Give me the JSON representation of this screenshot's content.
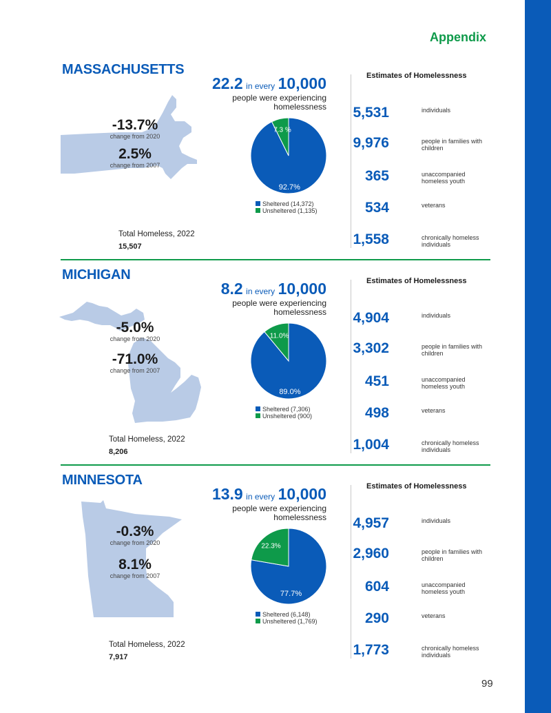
{
  "header": {
    "section": "Appendix",
    "page_number": "99"
  },
  "colors": {
    "accent": "#0a5bb8",
    "green": "#0e9a4a",
    "map": "#b9cbe6"
  },
  "common": {
    "in_every": "in every",
    "per": "10,000",
    "people_text": "people were experiencing homelessness",
    "estimates_title": "Estimates of Homelessness",
    "total_label": "Total Homeless, 2022",
    "change_2020_label": "change from 2020",
    "change_2007_label": "change from 2007",
    "sheltered_word": "Sheltered",
    "unsheltered_word": "Unsheltered",
    "est_labels": [
      "individuals",
      "people in families with children",
      "unaccompanied homeless youth",
      "veterans",
      "chronically homeless individuals"
    ]
  },
  "states": [
    {
      "name": "MASSACHUSETTS",
      "rate": "22.2",
      "change_2020": "-13.7%",
      "change_2007": "2.5%",
      "total": "15,507",
      "sheltered_count": "14,372",
      "unsheltered_count": "1,135",
      "sheltered_pct": 92.7,
      "unsheltered_pct": 7.3,
      "sheltered_label": "92.7%",
      "unsheltered_label": "7.3 %",
      "estimates": [
        "5,531",
        "9,976",
        "365",
        "534",
        "1,558"
      ]
    },
    {
      "name": "MICHIGAN",
      "rate": "8.2",
      "change_2020": "-5.0%",
      "change_2007": "-71.0%",
      "total": "8,206",
      "sheltered_count": "7,306",
      "unsheltered_count": "900",
      "sheltered_pct": 89.0,
      "unsheltered_pct": 11.0,
      "sheltered_label": "89.0%",
      "unsheltered_label": "11.0%",
      "estimates": [
        "4,904",
        "3,302",
        "451",
        "498",
        "1,004"
      ]
    },
    {
      "name": "MINNESOTA",
      "rate": "13.9",
      "change_2020": "-0.3%",
      "change_2007": "8.1%",
      "total": "7,917",
      "sheltered_count": "6,148",
      "unsheltered_count": "1,769",
      "sheltered_pct": 77.7,
      "unsheltered_pct": 22.3,
      "sheltered_label": "77.7%",
      "unsheltered_label": "22.3%",
      "estimates": [
        "4,957",
        "2,960",
        "604",
        "290",
        "1,773"
      ]
    }
  ],
  "chart_data": [
    {
      "type": "pie",
      "title": "Massachusetts",
      "categories": [
        "Sheltered (14,372)",
        "Unsheltered (1,135)"
      ],
      "values": [
        92.7,
        7.3
      ]
    },
    {
      "type": "pie",
      "title": "Michigan",
      "categories": [
        "Sheltered (7,306)",
        "Unsheltered (900)"
      ],
      "values": [
        89.0,
        11.0
      ]
    },
    {
      "type": "pie",
      "title": "Minnesota",
      "categories": [
        "Sheltered (6,148)",
        "Unsheltered (1,769)"
      ],
      "values": [
        77.7,
        22.3
      ]
    }
  ]
}
